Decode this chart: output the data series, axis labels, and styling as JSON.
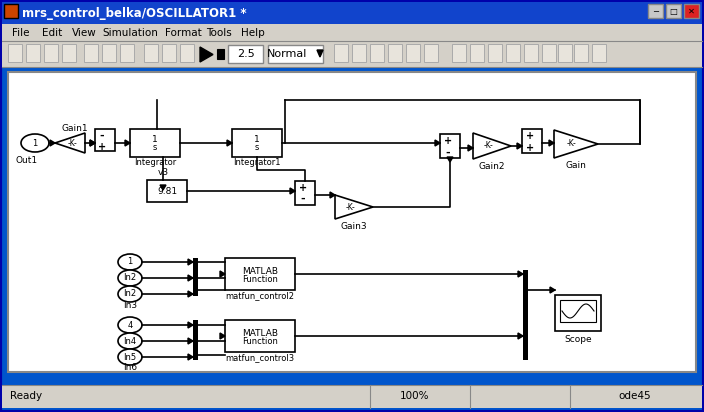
{
  "title_bar_text": "mrs_control_belka/OSCILLATOR1 *",
  "title_bar_bg": "#0000FF",
  "title_bar_fg": "#FFFFFF",
  "menu_items": [
    "File",
    "Edit",
    "View",
    "Simulation",
    "Format",
    "Tools",
    "Help"
  ],
  "toolbar_value": "2.5",
  "toolbar_dropdown": "Normal",
  "status_left": "Ready",
  "status_center": "100%",
  "status_right": "ode45",
  "canvas_bg": "#D4D0C8",
  "diagram_bg": "#FFFFFF",
  "window_border": "#003087",
  "block_bg": "#FFFFFF",
  "block_border": "#000000"
}
